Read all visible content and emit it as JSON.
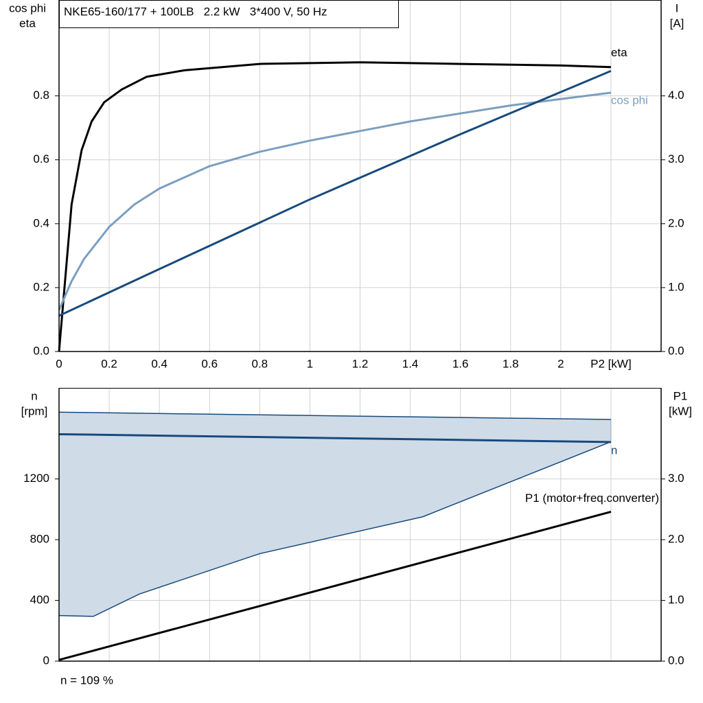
{
  "chart_data": [
    {
      "type": "line",
      "title": "NKE65-160/177 + 100LB   2.2 kW   3*400 V, 50 Hz",
      "ylabel": [
        "cos phi",
        "eta"
      ],
      "y2label": [
        "I",
        "[A]"
      ],
      "xlim": [
        0,
        2.4
      ],
      "xticks": [
        0,
        0.2,
        0.4,
        0.6,
        0.8,
        1.0,
        1.2,
        1.4,
        1.6,
        1.8,
        2.0,
        {
          "value": 2.2,
          "label": "P2 [kW]"
        }
      ],
      "ylim": [
        0,
        1.1
      ],
      "yticks": [
        {
          "value": 0,
          "label": "0.0"
        },
        0.2,
        0.4,
        0.6,
        0.8
      ],
      "y2lim": [
        0,
        5.5
      ],
      "y2ticks": [
        {
          "value": 0,
          "label": "0.0"
        },
        {
          "value": 1,
          "label": "1.0"
        },
        {
          "value": 2,
          "label": "2.0"
        },
        {
          "value": 3,
          "label": "3.0"
        },
        {
          "value": 4,
          "label": "4.0"
        }
      ],
      "grid": true,
      "xtick_labels": true,
      "series": [
        {
          "name": "eta",
          "color": "#000000",
          "x": [
            0,
            0.05,
            0.09,
            0.13,
            0.18,
            0.25,
            0.35,
            0.5,
            0.8,
            1.2,
            1.6,
            2.0,
            2.2
          ],
          "values": [
            0,
            0.46,
            0.63,
            0.72,
            0.78,
            0.82,
            0.86,
            0.88,
            0.9,
            0.905,
            0.9,
            0.895,
            0.89
          ]
        },
        {
          "name": "cos phi",
          "color": "#7b9ec0",
          "x": [
            0,
            0.05,
            0.1,
            0.2,
            0.3,
            0.4,
            0.6,
            0.8,
            1.0,
            1.2,
            1.4,
            1.6,
            1.8,
            2.0,
            2.2
          ],
          "values": [
            0.13,
            0.22,
            0.29,
            0.39,
            0.46,
            0.51,
            0.58,
            0.625,
            0.66,
            0.69,
            0.72,
            0.745,
            0.77,
            0.79,
            0.81
          ]
        },
        {
          "color": "#174a7c",
          "axis": "y2",
          "x": [
            0,
            0.4,
            1.0,
            1.6,
            2.0,
            2.2
          ],
          "values": [
            0.56,
            1.29,
            2.38,
            3.4,
            4.06,
            4.39
          ]
        }
      ]
    },
    {
      "type": "line",
      "footnote": "n = 109 %",
      "ylabel": [
        "n",
        "[rpm]"
      ],
      "y2label": [
        "P1",
        "[kW]"
      ],
      "xlim": [
        0,
        2.4
      ],
      "xticks": [
        0,
        0.2,
        0.4,
        0.6,
        0.8,
        1.0,
        1.2,
        1.4,
        1.6,
        1.8,
        2.0,
        2.2
      ],
      "ylim": [
        0,
        1800
      ],
      "yticks": [
        0,
        400,
        800,
        1200
      ],
      "y2lim": [
        0,
        4.5
      ],
      "y2ticks": [
        {
          "value": 0,
          "label": "0.0"
        },
        {
          "value": 1,
          "label": "1.0"
        },
        {
          "value": 2,
          "label": "2.0"
        },
        {
          "value": 3,
          "label": "3.0"
        }
      ],
      "grid": true,
      "xtick_labels": false,
      "band": {
        "color": "#d0dbe8",
        "line_color": "#174a7c",
        "upper": {
          "x": [
            0,
            2.2
          ],
          "values": [
            1640,
            1592
          ]
        },
        "lower": {
          "x": [
            0,
            0.137,
            0.32,
            0.8,
            1.45,
            2.2
          ],
          "values": [
            300,
            295,
            442,
            708,
            951,
            1445
          ]
        }
      },
      "series": [
        {
          "name": "n",
          "color": "#174a7c",
          "x": [
            0,
            2.2
          ],
          "values": [
            1495,
            1443
          ]
        },
        {
          "name": "P1 (motor+freq.converter)",
          "color": "#000000",
          "axis": "y2",
          "x": [
            0,
            2.2
          ],
          "values": [
            0.02,
            2.46
          ]
        }
      ]
    }
  ]
}
